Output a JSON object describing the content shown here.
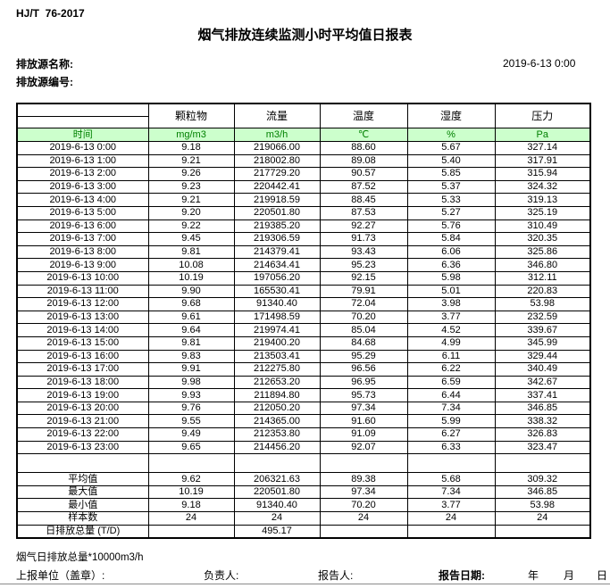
{
  "page": {
    "standard": "HJ/T  76-2017",
    "title": "烟气排放连续监测小时平均值日报表",
    "source_name_label": "排放源名称:",
    "source_id_label": "排放源编号:",
    "datetime": "2019-6-13 0:00"
  },
  "table": {
    "time_header": "时间",
    "columns": [
      {
        "label": "颗粒物",
        "unit": "mg/m3"
      },
      {
        "label": "流量",
        "unit": "m3/h"
      },
      {
        "label": "温度",
        "unit": "℃"
      },
      {
        "label": "湿度",
        "unit": "%"
      },
      {
        "label": "压力",
        "unit": "Pa"
      }
    ],
    "rows": [
      {
        "time": "2019-6-13 0:00",
        "values": [
          "9.18",
          "219066.00",
          "88.60",
          "5.67",
          "327.14"
        ]
      },
      {
        "time": "2019-6-13 1:00",
        "values": [
          "9.21",
          "218002.80",
          "89.08",
          "5.40",
          "317.91"
        ]
      },
      {
        "time": "2019-6-13 2:00",
        "values": [
          "9.26",
          "217729.20",
          "90.57",
          "5.85",
          "315.94"
        ]
      },
      {
        "time": "2019-6-13 3:00",
        "values": [
          "9.23",
          "220442.41",
          "87.52",
          "5.37",
          "324.32"
        ]
      },
      {
        "time": "2019-6-13 4:00",
        "values": [
          "9.21",
          "219918.59",
          "88.45",
          "5.33",
          "319.13"
        ]
      },
      {
        "time": "2019-6-13 5:00",
        "values": [
          "9.20",
          "220501.80",
          "87.53",
          "5.27",
          "325.19"
        ]
      },
      {
        "time": "2019-6-13 6:00",
        "values": [
          "9.22",
          "219385.20",
          "92.27",
          "5.76",
          "310.49"
        ]
      },
      {
        "time": "2019-6-13 7:00",
        "values": [
          "9.45",
          "219306.59",
          "91.73",
          "5.84",
          "320.35"
        ]
      },
      {
        "time": "2019-6-13 8:00",
        "values": [
          "9.81",
          "214379.41",
          "93.43",
          "6.06",
          "325.86"
        ]
      },
      {
        "time": "2019-6-13 9:00",
        "values": [
          "10.08",
          "214634.41",
          "95.23",
          "6.36",
          "346.80"
        ]
      },
      {
        "time": "2019-6-13 10:00",
        "values": [
          "10.19",
          "197056.20",
          "92.15",
          "5.98",
          "312.11"
        ]
      },
      {
        "time": "2019-6-13 11:00",
        "values": [
          "9.90",
          "165530.41",
          "79.91",
          "5.01",
          "220.83"
        ]
      },
      {
        "time": "2019-6-13 12:00",
        "values": [
          "9.68",
          "91340.40",
          "72.04",
          "3.98",
          "53.98"
        ]
      },
      {
        "time": "2019-6-13 13:00",
        "values": [
          "9.61",
          "171498.59",
          "70.20",
          "3.77",
          "232.59"
        ]
      },
      {
        "time": "2019-6-13 14:00",
        "values": [
          "9.64",
          "219974.41",
          "85.04",
          "4.52",
          "339.67"
        ]
      },
      {
        "time": "2019-6-13 15:00",
        "values": [
          "9.81",
          "219400.20",
          "84.68",
          "4.99",
          "345.99"
        ]
      },
      {
        "time": "2019-6-13 16:00",
        "values": [
          "9.83",
          "213503.41",
          "95.29",
          "6.11",
          "329.44"
        ]
      },
      {
        "time": "2019-6-13 17:00",
        "values": [
          "9.91",
          "212275.80",
          "96.56",
          "6.22",
          "340.49"
        ]
      },
      {
        "time": "2019-6-13 18:00",
        "values": [
          "9.98",
          "212653.20",
          "96.95",
          "6.59",
          "342.67"
        ]
      },
      {
        "time": "2019-6-13 19:00",
        "values": [
          "9.93",
          "211894.80",
          "95.73",
          "6.44",
          "337.41"
        ]
      },
      {
        "time": "2019-6-13 20:00",
        "values": [
          "9.76",
          "212050.20",
          "97.34",
          "7.34",
          "346.85"
        ]
      },
      {
        "time": "2019-6-13 21:00",
        "values": [
          "9.55",
          "214365.00",
          "91.60",
          "5.99",
          "338.32"
        ]
      },
      {
        "time": "2019-6-13 22:00",
        "values": [
          "9.49",
          "212353.80",
          "91.09",
          "6.27",
          "326.83"
        ]
      },
      {
        "time": "2019-6-13 23:00",
        "values": [
          "9.65",
          "214456.20",
          "92.07",
          "6.33",
          "323.47"
        ]
      }
    ],
    "summary": [
      {
        "label": "平均值",
        "values": [
          "9.62",
          "206321.63",
          "89.38",
          "5.68",
          "309.32"
        ]
      },
      {
        "label": "最大值",
        "values": [
          "10.19",
          "220501.80",
          "97.34",
          "7.34",
          "346.85"
        ]
      },
      {
        "label": "最小值",
        "values": [
          "9.18",
          "91340.40",
          "70.20",
          "3.77",
          "53.98"
        ]
      },
      {
        "label": "样本数",
        "values": [
          "24",
          "24",
          "24",
          "24",
          "24"
        ]
      },
      {
        "label": "日排放总量 (T/D)",
        "values": [
          "",
          "495.17",
          "",
          "",
          ""
        ]
      }
    ]
  },
  "footer": {
    "note": "烟气日排放总量*10000m3/h",
    "report_unit_label": "上报单位（盖章）:",
    "responsible_label": "负责人:",
    "reporter_label": "报告人:",
    "report_date_label": "报告日期:",
    "year_label": "年",
    "month_label": "月",
    "day_label": "日"
  },
  "colors": {
    "header_band_bg": "#ccffcc",
    "header_band_text": "#008000",
    "border": "#000000"
  }
}
